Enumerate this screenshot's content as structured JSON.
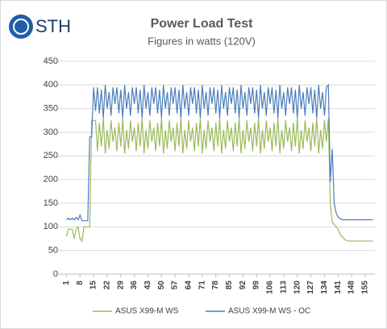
{
  "logo": "STH",
  "chart_data": {
    "type": "line",
    "title": "Power Load Test",
    "subtitle": "Figures in watts (120V)",
    "x": [
      1,
      2,
      3,
      4,
      5,
      6,
      7,
      8,
      9,
      10,
      11,
      12,
      13,
      14,
      15,
      16,
      17,
      18,
      19,
      20,
      21,
      22,
      23,
      24,
      25,
      26,
      27,
      28,
      29,
      30,
      31,
      32,
      33,
      34,
      35,
      36,
      37,
      38,
      39,
      40,
      41,
      42,
      43,
      44,
      45,
      46,
      47,
      48,
      49,
      50,
      51,
      52,
      53,
      54,
      55,
      56,
      57,
      58,
      59,
      60,
      61,
      62,
      63,
      64,
      65,
      66,
      67,
      68,
      69,
      70,
      71,
      72,
      73,
      74,
      75,
      76,
      77,
      78,
      79,
      80,
      81,
      82,
      83,
      84,
      85,
      86,
      87,
      88,
      89,
      90,
      91,
      92,
      93,
      94,
      95,
      96,
      97,
      98,
      99,
      100,
      101,
      102,
      103,
      104,
      105,
      106,
      107,
      108,
      109,
      110,
      111,
      112,
      113,
      114,
      115,
      116,
      117,
      118,
      119,
      120,
      121,
      122,
      123,
      124,
      125,
      126,
      127,
      128,
      129,
      130,
      131,
      132,
      133,
      134,
      135,
      136,
      137,
      138,
      139,
      140,
      141,
      142,
      143,
      144,
      145,
      146,
      147,
      148,
      149,
      150,
      151,
      152,
      153,
      154,
      155,
      156,
      157,
      158,
      159
    ],
    "series": [
      {
        "name": "ASUS X99-M WS",
        "color": "#9bbb59",
        "values": [
          80,
          95,
          95,
          95,
          75,
          95,
          100,
          75,
          70,
          100,
          100,
          100,
          100,
          325,
          325,
          325,
          260,
          320,
          270,
          330,
          255,
          305,
          265,
          325,
          280,
          310,
          260,
          320,
          270,
          330,
          255,
          305,
          265,
          325,
          280,
          310,
          260,
          320,
          270,
          330,
          255,
          305,
          265,
          325,
          280,
          310,
          260,
          320,
          270,
          330,
          255,
          305,
          265,
          325,
          280,
          310,
          260,
          320,
          270,
          330,
          255,
          305,
          265,
          325,
          280,
          310,
          260,
          320,
          270,
          330,
          255,
          305,
          265,
          325,
          280,
          310,
          260,
          320,
          270,
          330,
          255,
          305,
          265,
          325,
          280,
          310,
          260,
          320,
          270,
          330,
          255,
          305,
          265,
          325,
          280,
          310,
          260,
          320,
          270,
          330,
          255,
          305,
          265,
          325,
          280,
          310,
          260,
          320,
          270,
          330,
          255,
          305,
          265,
          325,
          280,
          310,
          260,
          320,
          270,
          330,
          255,
          305,
          265,
          325,
          280,
          310,
          260,
          320,
          270,
          330,
          255,
          305,
          265,
          325,
          280,
          330,
          150,
          110,
          105,
          100,
          95,
          85,
          80,
          75,
          72,
          70,
          70,
          70,
          70,
          70,
          70,
          70,
          70,
          70,
          70,
          70,
          70,
          70,
          70
        ]
      },
      {
        "name": "ASUS X99-M WS - OC",
        "color": "#4a7ebb",
        "values": [
          115,
          118,
          115,
          118,
          115,
          120,
          115,
          125,
          113,
          113,
          113,
          113,
          290,
          290,
          395,
          345,
          395,
          340,
          390,
          330,
          400,
          350,
          385,
          335,
          395,
          360,
          395,
          340,
          390,
          330,
          400,
          350,
          385,
          335,
          395,
          360,
          395,
          340,
          390,
          330,
          400,
          350,
          385,
          335,
          395,
          360,
          395,
          340,
          390,
          330,
          400,
          350,
          385,
          335,
          395,
          360,
          395,
          340,
          390,
          330,
          400,
          350,
          385,
          335,
          395,
          360,
          395,
          340,
          390,
          330,
          400,
          350,
          385,
          335,
          395,
          360,
          395,
          340,
          390,
          330,
          400,
          350,
          385,
          335,
          395,
          360,
          395,
          340,
          390,
          330,
          400,
          350,
          385,
          335,
          395,
          360,
          395,
          340,
          390,
          330,
          400,
          350,
          385,
          335,
          395,
          360,
          395,
          340,
          390,
          330,
          400,
          350,
          385,
          335,
          395,
          360,
          395,
          340,
          390,
          330,
          400,
          350,
          385,
          335,
          395,
          360,
          395,
          340,
          390,
          330,
          400,
          350,
          385,
          335,
          395,
          400,
          195,
          265,
          150,
          130,
          120,
          118,
          115,
          115,
          115,
          115,
          115,
          115,
          115,
          115,
          115,
          115,
          115,
          115,
          115,
          115,
          115,
          115,
          115
        ]
      }
    ],
    "xlim": [
      0,
      160
    ],
    "xticks": [
      1,
      8,
      15,
      22,
      29,
      36,
      43,
      50,
      57,
      64,
      71,
      78,
      85,
      92,
      99,
      106,
      113,
      120,
      127,
      134,
      141,
      148,
      155
    ],
    "ylim": [
      0,
      450
    ],
    "yticks": [
      0,
      50,
      100,
      150,
      200,
      250,
      300,
      350,
      400,
      450
    ],
    "grid": true,
    "legend": "bottom"
  }
}
